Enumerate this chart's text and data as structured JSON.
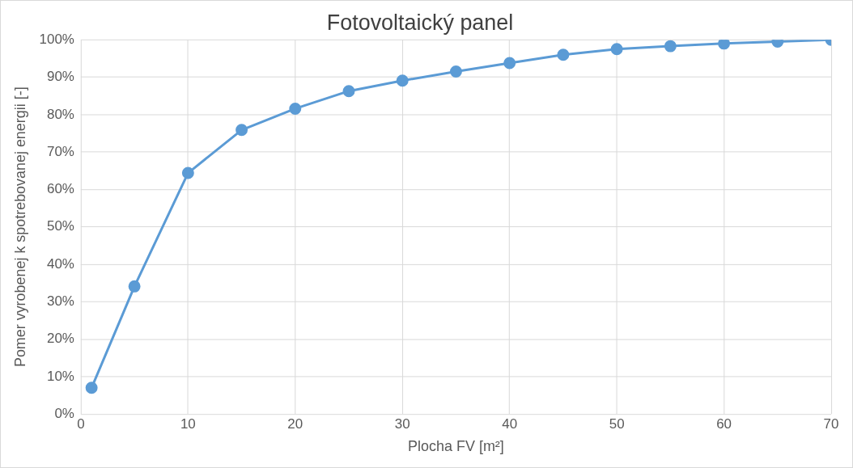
{
  "chart_data": {
    "type": "line",
    "title": "Fotovoltaický panel",
    "xlabel": "Plocha FV [m²]",
    "ylabel": "Pomer vyrobenej k spotrebovanej energii [-]",
    "x": [
      1,
      5,
      10,
      15,
      20,
      25,
      30,
      35,
      40,
      45,
      50,
      55,
      60,
      65,
      70
    ],
    "series": [
      {
        "color": "#5b9bd5",
        "values": [
          7.0,
          34.1,
          64.4,
          75.9,
          81.6,
          86.3,
          89.1,
          91.5,
          93.8,
          96.0,
          97.5,
          98.3,
          99.0,
          99.5,
          100
        ]
      }
    ],
    "xlim": [
      0,
      70
    ],
    "xticks": [
      0,
      10,
      20,
      30,
      40,
      50,
      60,
      70
    ],
    "ylim": [
      0,
      100
    ],
    "yticks": [
      {
        "value": 0,
        "label": "0%"
      },
      {
        "value": 10,
        "label": "10%"
      },
      {
        "value": 20,
        "label": "20%"
      },
      {
        "value": 30,
        "label": "30%"
      },
      {
        "value": 40,
        "label": "40%"
      },
      {
        "value": 50,
        "label": "50%"
      },
      {
        "value": 60,
        "label": "60%"
      },
      {
        "value": 70,
        "label": "70%"
      },
      {
        "value": 80,
        "label": "80%"
      },
      {
        "value": 90,
        "label": "90%"
      },
      {
        "value": 100,
        "label": "100%"
      }
    ],
    "grid": true,
    "legend": false,
    "marker": "circle",
    "line_style": "solid"
  }
}
